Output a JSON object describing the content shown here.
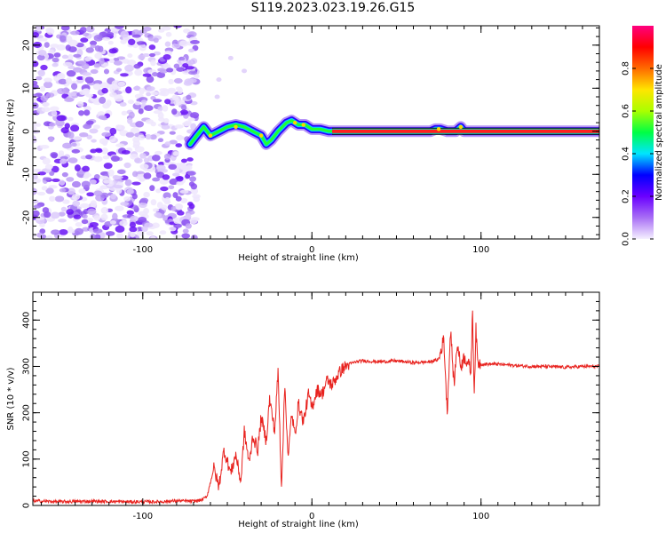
{
  "title": "S119.2023.023.19.26.G15",
  "chart_data": [
    {
      "type": "heatmap",
      "xlabel": "Height of straight line (km)",
      "ylabel": "Frequency (Hz)",
      "xlim": [
        -165,
        170
      ],
      "ylim": [
        -25,
        24.5
      ],
      "xticks": [
        "-100",
        "0",
        "100"
      ],
      "xtick_values": [
        -100,
        0,
        100
      ],
      "yticks": [
        "-20",
        "-10",
        "0",
        "10",
        "20"
      ],
      "ytick_values": [
        -20,
        -10,
        0,
        10,
        20
      ],
      "noise_region_x": [
        -165,
        -72
      ],
      "ridge": {
        "x": [
          -72,
          -68,
          -64,
          -60,
          -55,
          -50,
          -45,
          -40,
          -35,
          -30,
          -27,
          -24,
          -20,
          -15,
          -12,
          -8,
          -4,
          0,
          5,
          10,
          15,
          20,
          40,
          60,
          70,
          73,
          76,
          80,
          85,
          88,
          90,
          95,
          120,
          170
        ],
        "freq": [
          -3,
          -1,
          1,
          -1,
          0,
          1,
          1.5,
          1,
          0,
          -1,
          -3,
          -2,
          0,
          2,
          2.5,
          1.5,
          1.5,
          0.5,
          0.5,
          0,
          0,
          0,
          0,
          0,
          0,
          0.5,
          0.5,
          0,
          0,
          1,
          0,
          0,
          0,
          0
        ]
      },
      "colorbar": {
        "label": "Normalized spectral amplitude",
        "ticks": [
          "0.0",
          "0.2",
          "0.4",
          "0.6",
          "0.8"
        ],
        "tick_values": [
          0,
          0.2,
          0.4,
          0.6,
          0.8
        ],
        "range": [
          0,
          1
        ],
        "colormap": [
          "#f5f0ff",
          "#a86ef5",
          "#6a00ff",
          "#0000ff",
          "#00e5ff",
          "#00ff44",
          "#aaff00",
          "#ffe500",
          "#ff6a00",
          "#ff0000",
          "#ff007f"
        ]
      }
    },
    {
      "type": "line",
      "xlabel": "Height of straight line (km)",
      "ylabel": "SNR (10 * v/v)",
      "xlim": [
        -165,
        170
      ],
      "ylim": [
        0,
        460
      ],
      "xticks": [
        "-100",
        "0",
        "100"
      ],
      "xtick_values": [
        -100,
        0,
        100
      ],
      "yticks": [
        "0",
        "100",
        "200",
        "300",
        "400"
      ],
      "ytick_values": [
        0,
        100,
        200,
        300,
        400
      ],
      "color": "#e8231f",
      "series": [
        {
          "x": [
            -165,
            -150,
            -130,
            -110,
            -90,
            -80,
            -70,
            -65,
            -62,
            -58,
            -55,
            -52,
            -48,
            -45,
            -42,
            -40,
            -37,
            -35,
            -32,
            -30,
            -27,
            -25,
            -22,
            -20,
            -18,
            -16,
            -14,
            -12,
            -10,
            -8,
            -5,
            -2,
            0,
            3,
            6,
            9,
            12,
            15,
            18,
            22,
            26,
            30,
            40,
            50,
            60,
            70,
            75,
            78,
            80,
            82,
            84,
            86,
            88,
            90,
            92,
            94,
            95,
            96,
            97,
            98,
            100,
            110,
            120,
            130,
            140,
            150,
            160,
            170
          ],
          "y": [
            10,
            8,
            9,
            8,
            8,
            10,
            9,
            12,
            20,
            80,
            40,
            120,
            70,
            110,
            50,
            160,
            90,
            150,
            120,
            190,
            140,
            230,
            160,
            290,
            40,
            260,
            100,
            200,
            150,
            220,
            180,
            240,
            210,
            250,
            240,
            270,
            260,
            280,
            295,
            305,
            310,
            312,
            310,
            312,
            308,
            310,
            315,
            360,
            200,
            380,
            260,
            350,
            300,
            320,
            310,
            290,
            420,
            240,
            380,
            310,
            305,
            305,
            302,
            300,
            300,
            298,
            300,
            300
          ]
        }
      ]
    }
  ]
}
